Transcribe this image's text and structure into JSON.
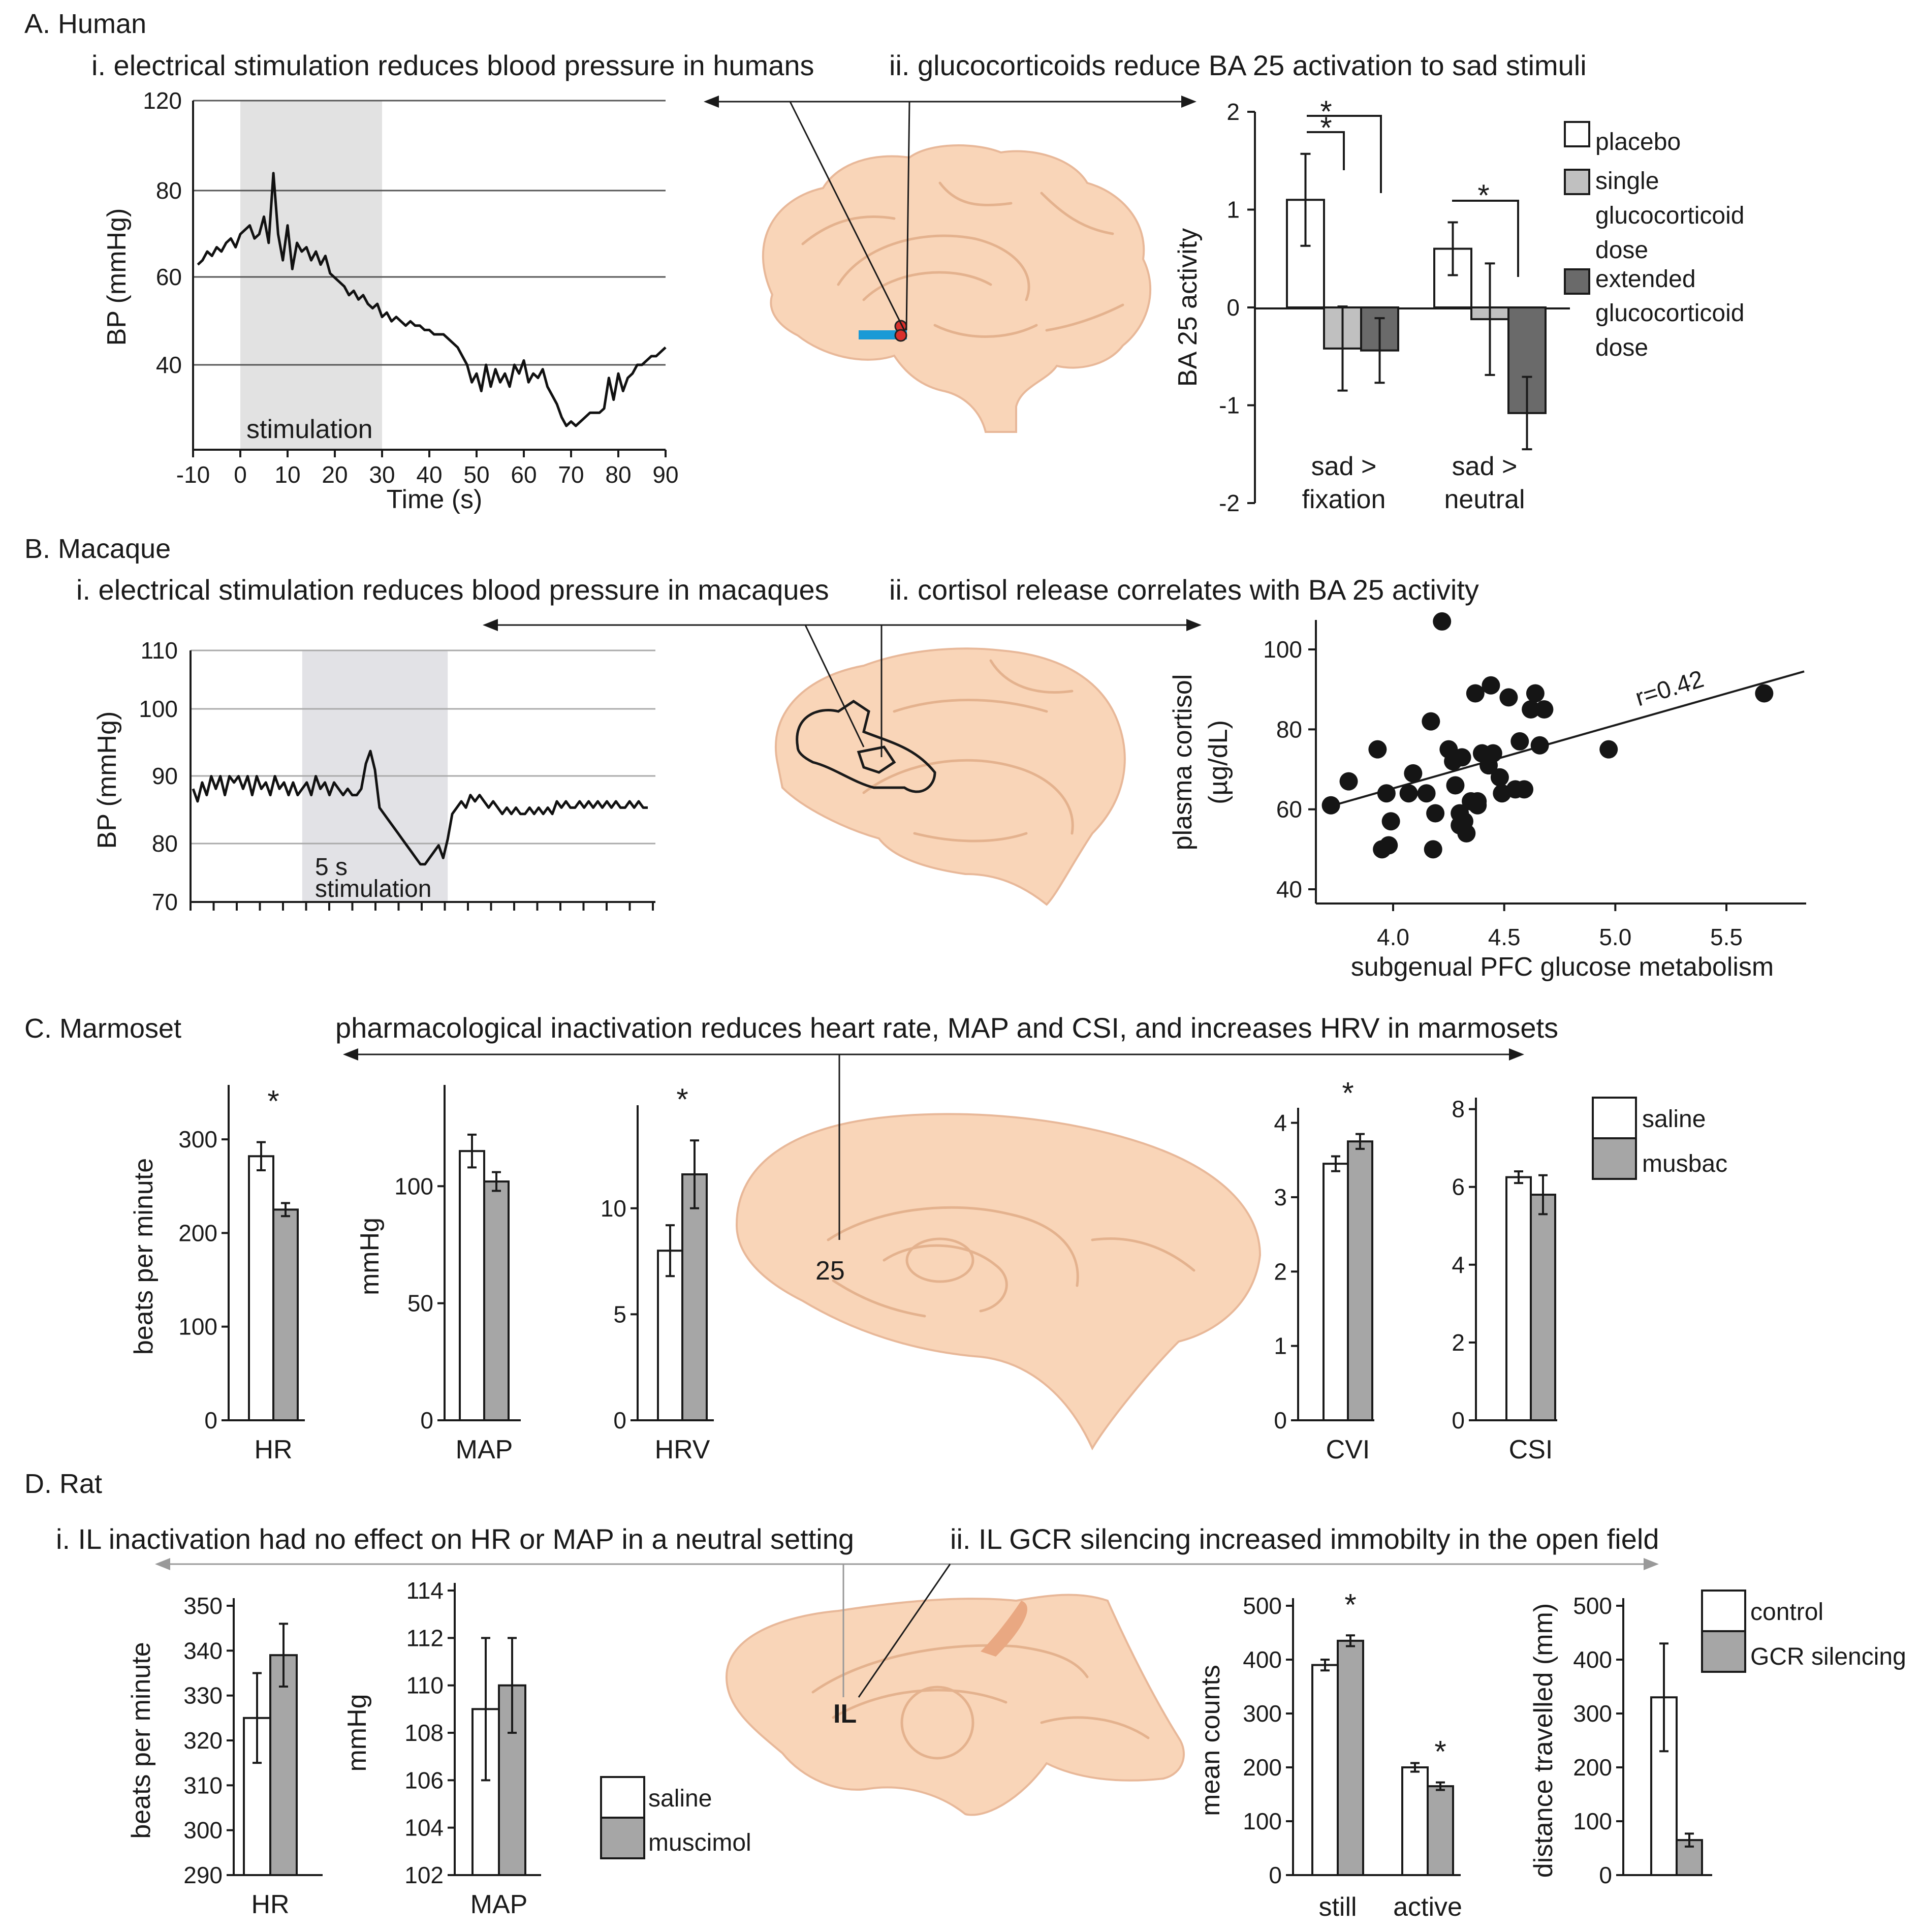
{
  "panels": {
    "A": {
      "label": "A. Human",
      "i": {
        "title": "i. electrical stimulation reduces blood pressure in humans",
        "ylabel": "BP (mmHg)",
        "xlabel": "Time (s)",
        "shade_label": "stimulation",
        "yticks": [
          "40",
          "60",
          "80",
          "120"
        ],
        "xticks": [
          "-10",
          "0",
          "10",
          "20",
          "30",
          "40",
          "50",
          "60",
          "70",
          "80",
          "90"
        ]
      },
      "ii": {
        "title": "ii. glucocorticoids reduce BA 25 activation to sad stimuli",
        "ylabel": "BA 25 activity",
        "yticks": [
          "2",
          "1",
          "0",
          "-1",
          "-2"
        ],
        "groups": [
          {
            "line1": "sad >",
            "line2": "fixation"
          },
          {
            "line1": "sad >",
            "line2": "neutral"
          }
        ],
        "legend": [
          "placebo",
          "single",
          "glucocorticoid",
          "dose",
          "extended",
          "glucocorticoid",
          "dose"
        ],
        "star": "*"
      }
    },
    "B": {
      "label": "B. Macaque",
      "i": {
        "title": "i. electrical stimulation reduces blood pressure in macaques",
        "ylabel": "BP (mmHg)",
        "yticks": [
          "70",
          "80",
          "90",
          "100",
          "110"
        ],
        "shade_line1": "5 s",
        "shade_line2": "stimulation"
      },
      "ii": {
        "title": "ii. cortisol release correlates with BA 25 activity",
        "ylabel1": "plasma cortisol",
        "ylabel2": "(µg/dL)",
        "xlabel": "subgenual PFC glucose metabolism",
        "r_label": "r=0.42",
        "yticks": [
          "40",
          "60",
          "80",
          "100"
        ],
        "xticks": [
          "4.0",
          "4.5",
          "5.0",
          "5.5"
        ]
      }
    },
    "C": {
      "label": "C. Marmoset",
      "title": "pharmacological inactivation reduces heart rate, MAP and CSI, and increases HRV in marmosets",
      "brain_label": "25",
      "legend": [
        "saline",
        "musbac"
      ],
      "star": "*"
    },
    "D": {
      "label": "D. Rat",
      "i_title": "i. IL inactivation had no effect on HR or MAP in a neutral setting",
      "ii_title": "ii. IL GCR silencing increased immobilty in the open field",
      "brain_label": "IL",
      "legend_i": [
        "saline",
        "muscimol"
      ],
      "legend_ii": [
        "control",
        "GCR silencing"
      ],
      "star": "*"
    }
  },
  "chart_data": [
    {
      "id": "A-i",
      "type": "line",
      "title": "i. electrical stimulation reduces blood pressure in humans",
      "xlabel": "Time (s)",
      "ylabel": "BP (mmHg)",
      "xlim": [
        -10,
        90
      ],
      "ylim": [
        20,
        120
      ],
      "shade": [
        0,
        30
      ],
      "x": [
        -9,
        -8,
        -7,
        -6,
        -5,
        -4,
        -3,
        -2,
        -1,
        0,
        1,
        2,
        3,
        4,
        5,
        6,
        7,
        8,
        9,
        10,
        11,
        12,
        13,
        14,
        15,
        16,
        17,
        18,
        19,
        20,
        21,
        22,
        23,
        24,
        25,
        26,
        27,
        28,
        29,
        30,
        31,
        32,
        33,
        34,
        35,
        36,
        37,
        38,
        39,
        40,
        41,
        42,
        43,
        44,
        45,
        46,
        47,
        48,
        49,
        50,
        51,
        52,
        53,
        54,
        55,
        56,
        57,
        58,
        59,
        60,
        61,
        62,
        63,
        64,
        65,
        66,
        67,
        68,
        69,
        70,
        71,
        72,
        73,
        74,
        75,
        76,
        77,
        78,
        79,
        80,
        81,
        82,
        83,
        84,
        85,
        86,
        87,
        88,
        89,
        90
      ],
      "y": [
        63,
        64,
        66,
        65,
        67,
        66,
        68,
        69,
        67,
        70,
        71,
        72,
        69,
        70,
        74,
        68,
        84,
        70,
        64,
        72,
        62,
        68,
        66,
        67,
        64,
        66,
        63,
        65,
        61,
        60,
        59,
        58,
        56,
        57,
        55,
        56,
        54,
        53,
        54,
        51,
        52,
        50,
        51,
        50,
        49,
        50,
        49,
        49,
        48,
        48,
        47,
        47,
        47,
        46,
        45,
        44,
        42,
        40,
        36,
        38,
        34,
        40,
        35,
        39,
        36,
        38,
        35,
        40,
        38,
        41,
        36,
        38,
        37,
        39,
        35,
        33,
        31,
        28,
        26,
        27,
        26,
        27,
        28,
        29,
        29,
        29,
        30,
        37,
        32,
        38,
        34,
        37,
        38,
        40,
        40,
        41,
        42,
        42,
        43,
        44
      ]
    },
    {
      "id": "A-ii",
      "type": "bar",
      "ylabel": "BA 25 activity",
      "ylim": [
        -2,
        2
      ],
      "categories": [
        "sad > fixation",
        "sad > neutral"
      ],
      "series": [
        {
          "name": "placebo",
          "values": [
            1.1,
            0.6
          ],
          "err": [
            0.47,
            0.27
          ]
        },
        {
          "name": "single glucocorticoid dose",
          "values": [
            -0.42,
            -0.12
          ],
          "err": [
            0.43,
            0.57
          ]
        },
        {
          "name": "extended glucocorticoid dose",
          "values": [
            -0.44,
            -1.08
          ],
          "err": [
            0.33,
            0.37
          ]
        }
      ]
    },
    {
      "id": "B-i",
      "type": "line",
      "title": "i. electrical stimulation reduces blood pressure in macaques",
      "ylabel": "BP (mmHg)",
      "ylim": [
        70,
        110
      ],
      "xlim": [
        0,
        100
      ],
      "shade": [
        24,
        56
      ],
      "x": [
        0,
        1,
        2,
        3,
        4,
        5,
        6,
        7,
        8,
        9,
        10,
        11,
        12,
        13,
        14,
        15,
        16,
        17,
        18,
        19,
        20,
        21,
        22,
        23,
        24,
        25,
        26,
        27,
        28,
        29,
        30,
        31,
        32,
        33,
        34,
        35,
        36,
        37,
        38,
        39,
        40,
        41,
        42,
        43,
        44,
        45,
        46,
        47,
        48,
        49,
        50,
        51,
        52,
        53,
        54,
        55,
        56,
        57,
        58,
        59,
        60,
        61,
        62,
        63,
        64,
        65,
        66,
        67,
        68,
        69,
        70,
        71,
        72,
        73,
        74,
        75,
        76,
        77,
        78,
        79,
        80,
        81,
        82,
        83,
        84,
        85,
        86,
        87,
        88,
        89,
        90,
        91,
        92,
        93,
        94,
        95,
        96,
        97,
        98,
        99,
        100
      ],
      "y": [
        88,
        86,
        89,
        87,
        90,
        88,
        90,
        87,
        90,
        89,
        90,
        88,
        90,
        87,
        90,
        88,
        89,
        87,
        90,
        88,
        89,
        87,
        89,
        87,
        88,
        89,
        87,
        90,
        88,
        89,
        87,
        89,
        88,
        87,
        88,
        87,
        87,
        88,
        92,
        94,
        91,
        85,
        84,
        83,
        82,
        81,
        80,
        79,
        78,
        77,
        76,
        76,
        77,
        78,
        79,
        77,
        80,
        84,
        85,
        86,
        85,
        87,
        86,
        87,
        86,
        85,
        86,
        85,
        84,
        85,
        84,
        85,
        84,
        84,
        85,
        84,
        85,
        84,
        85,
        84,
        86,
        85,
        86,
        85,
        85,
        86,
        85,
        86,
        85,
        86,
        85,
        86,
        85,
        86,
        85,
        85,
        86,
        85,
        86,
        85,
        85
      ]
    },
    {
      "id": "B-ii",
      "type": "scatter",
      "title": "ii. cortisol release correlates with BA 25 activity",
      "xlabel": "subgenual PFC glucose metabolism",
      "ylabel": "plasma cortisol (µg/dL)",
      "xlim": [
        3.7,
        5.85
      ],
      "ylim": [
        35,
        110
      ],
      "x": [
        3.72,
        3.8,
        3.93,
        3.95,
        3.97,
        3.98,
        3.99,
        4.07,
        4.09,
        4.15,
        4.17,
        4.18,
        4.19,
        4.22,
        4.25,
        4.27,
        4.28,
        4.3,
        4.3,
        4.31,
        4.32,
        4.33,
        4.35,
        4.37,
        4.38,
        4.38,
        4.4,
        4.43,
        4.44,
        4.45,
        4.48,
        4.49,
        4.52,
        4.55,
        4.57,
        4.59,
        4.62,
        4.64,
        4.66,
        4.68,
        4.97,
        5.67
      ],
      "y": [
        61,
        67,
        75,
        50,
        64,
        51,
        57,
        64,
        69,
        64,
        82,
        50,
        59,
        107,
        75,
        72,
        66,
        59,
        56,
        73,
        57,
        54,
        62,
        89,
        61,
        62,
        74,
        71,
        91,
        74,
        68,
        64,
        88,
        65,
        77,
        65,
        85,
        89,
        76,
        85,
        75,
        89
      ],
      "trendline": {
        "x": [
          3.7,
          5.85
        ],
        "y": [
          60.5,
          94.5
        ]
      },
      "r": 0.42
    },
    {
      "id": "C",
      "type": "bar",
      "title": "pharmacological inactivation reduces heart rate, MAP and CSI, and increases HRV in marmosets",
      "subplots": [
        {
          "category": "HR",
          "ylabel": "beats per minute",
          "ylim": [
            0,
            350
          ],
          "yticks": [
            0,
            100,
            200,
            300
          ],
          "series": [
            {
              "name": "saline",
              "value": 282,
              "err": 15
            },
            {
              "name": "musbac",
              "value": 225,
              "err": 7
            }
          ],
          "sig": true
        },
        {
          "category": "MAP",
          "ylabel": "mmHg",
          "ylim": [
            0,
            140
          ],
          "yticks": [
            0,
            50,
            100
          ],
          "series": [
            {
              "name": "saline",
              "value": 115,
              "err": 7
            },
            {
              "name": "musbac",
              "value": 102,
              "err": 4
            }
          ],
          "sig": false
        },
        {
          "category": "HRV",
          "ylabel": "",
          "ylim": [
            0,
            14.5
          ],
          "yticks": [
            0,
            5,
            10
          ],
          "series": [
            {
              "name": "saline",
              "value": 8,
              "err": 1.2
            },
            {
              "name": "musbac",
              "value": 11.6,
              "err": 1.6
            }
          ],
          "sig": true
        },
        {
          "category": "CVI",
          "ylabel": "",
          "ylim": [
            0,
            4.1
          ],
          "yticks": [
            0,
            1,
            2,
            3,
            4
          ],
          "series": [
            {
              "name": "saline",
              "value": 3.45,
              "err": 0.1
            },
            {
              "name": "musbac",
              "value": 3.75,
              "err": 0.1
            }
          ],
          "sig": true
        },
        {
          "category": "CSI",
          "ylabel": "",
          "ylim": [
            0,
            8.1
          ],
          "yticks": [
            0,
            2,
            4,
            6,
            8
          ],
          "series": [
            {
              "name": "saline",
              "value": 6.25,
              "err": 0.15
            },
            {
              "name": "musbac",
              "value": 5.8,
              "err": 0.5
            }
          ],
          "sig": false
        }
      ]
    },
    {
      "id": "D-i",
      "type": "bar",
      "title": "i. IL inactivation had no effect on HR or MAP in a neutral setting",
      "subplots": [
        {
          "category": "HR",
          "ylabel": "beats per minute",
          "ylim": [
            290,
            350
          ],
          "yticks": [
            290,
            300,
            310,
            320,
            330,
            340,
            350
          ],
          "series": [
            {
              "name": "saline",
              "value": 325,
              "err": 10
            },
            {
              "name": "muscimol",
              "value": 339,
              "err": 7
            }
          ]
        },
        {
          "category": "MAP",
          "ylabel": "mmHg",
          "ylim": [
            102,
            114
          ],
          "yticks": [
            102,
            104,
            106,
            108,
            110,
            112,
            114
          ],
          "series": [
            {
              "name": "saline",
              "value": 109,
              "err": 3
            },
            {
              "name": "muscimol",
              "value": 110,
              "err": 2
            }
          ]
        }
      ]
    },
    {
      "id": "D-ii",
      "type": "bar",
      "title": "ii. IL GCR silencing increased immobilty in the open field",
      "subplots": [
        {
          "ylabel": "mean counts",
          "ylim": [
            0,
            500
          ],
          "yticks": [
            0,
            100,
            200,
            300,
            400,
            500
          ],
          "categories": [
            "still",
            "active"
          ],
          "series": [
            {
              "name": "control",
              "values": [
                390,
                200
              ],
              "err": [
                10,
                8
              ]
            },
            {
              "name": "GCR silencing",
              "values": [
                435,
                165
              ],
              "err": [
                10,
                7
              ]
            }
          ],
          "sig": [
            true,
            true
          ]
        },
        {
          "ylabel": "distance travelled (mm)",
          "ylim": [
            0,
            500
          ],
          "yticks": [
            0,
            100,
            200,
            300,
            400,
            500
          ],
          "series": [
            {
              "name": "control",
              "value": 330,
              "err": 100
            },
            {
              "name": "GCR silencing",
              "value": 65,
              "err": 12
            }
          ]
        }
      ]
    }
  ]
}
